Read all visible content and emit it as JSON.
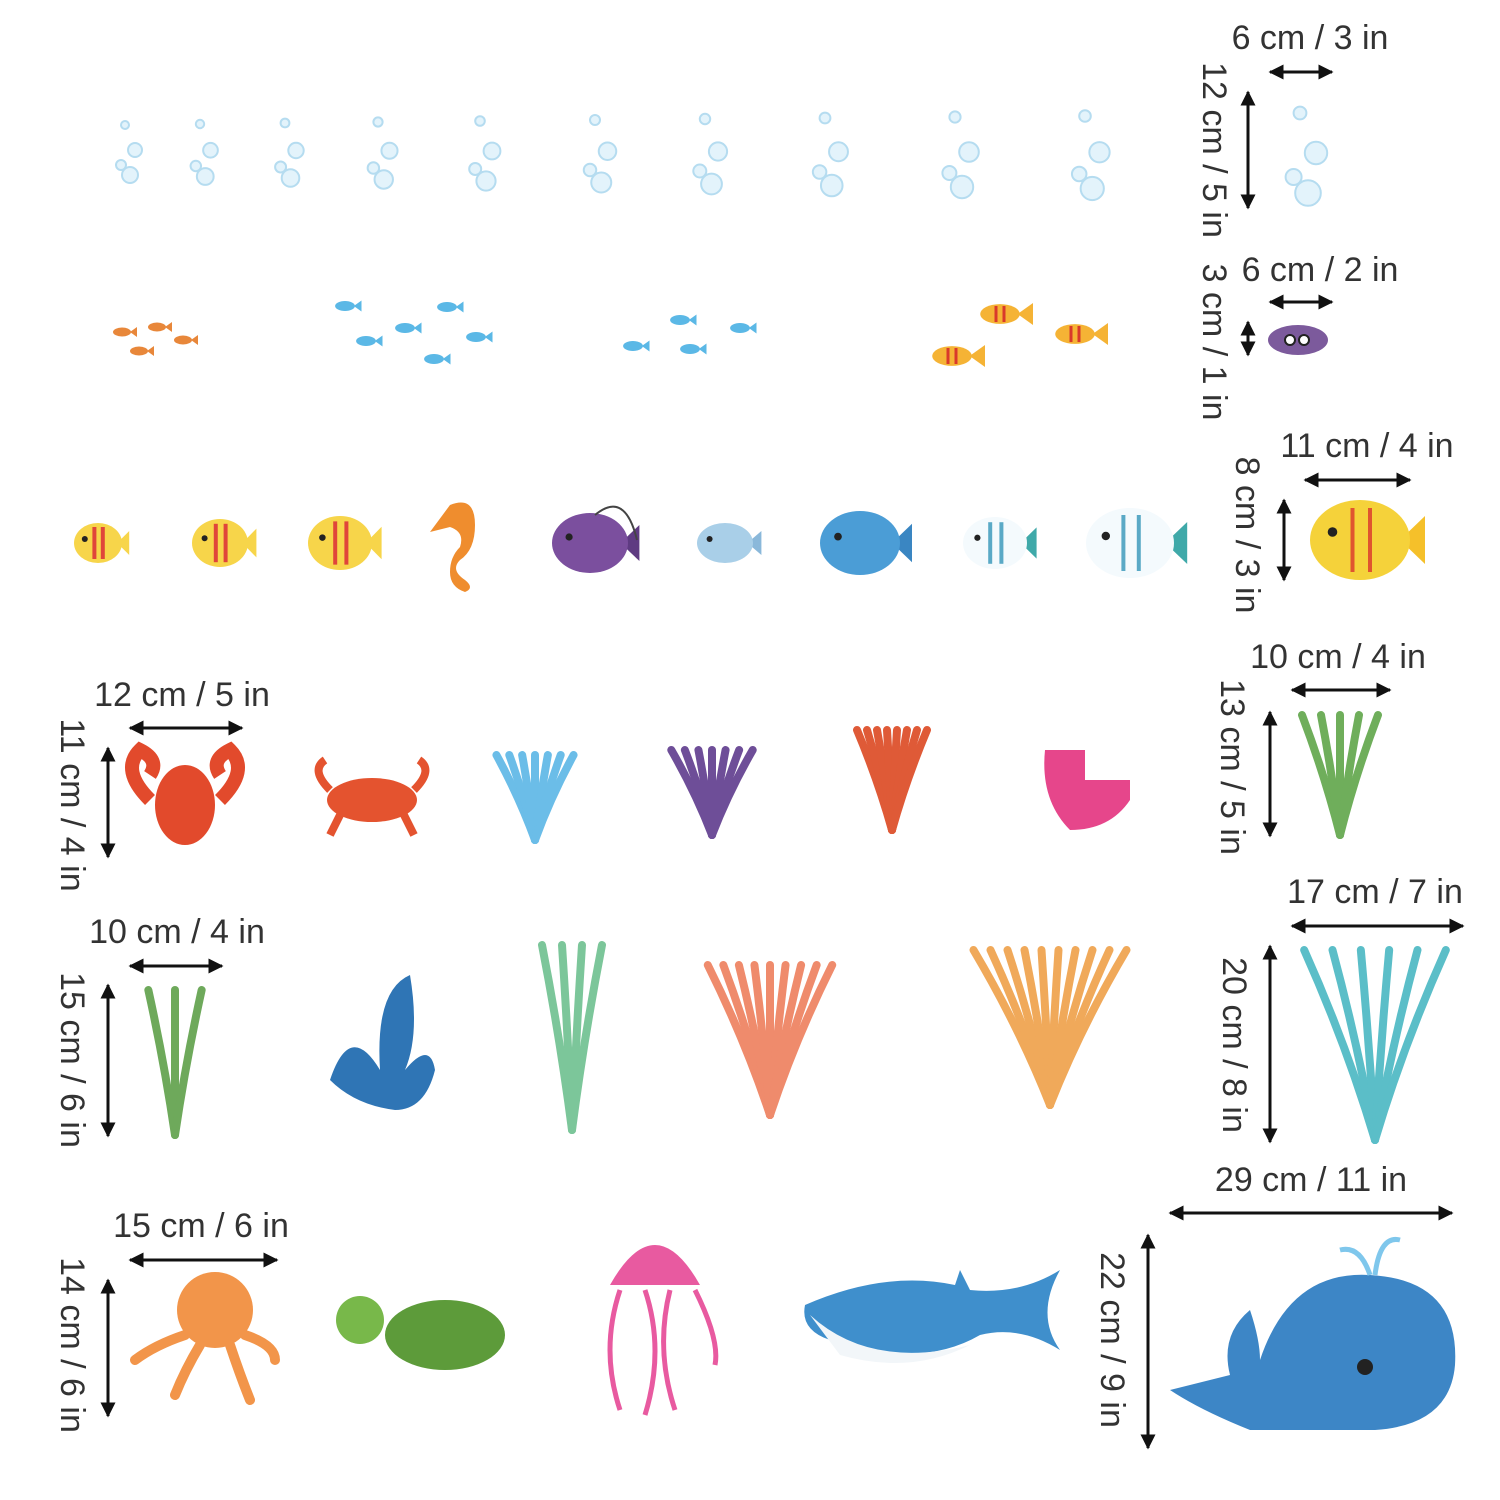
{
  "measurements": [
    {
      "width": "6 cm / 3 in",
      "height": "12 cm / 5 in"
    },
    {
      "width": "6 cm / 2 in",
      "height": "3 cm / 1 in"
    },
    {
      "width": "11 cm / 4 in",
      "height": "8 cm / 3 in"
    },
    {
      "width": "12 cm / 5 in",
      "height": "11 cm / 4 in"
    },
    {
      "width": "10 cm / 4 in",
      "height": "13 cm / 5 in"
    },
    {
      "width": "10 cm / 4 in",
      "height": "15 cm / 6 in"
    },
    {
      "width": "17 cm / 7 in",
      "height": "20 cm / 8 in"
    },
    {
      "width": "15 cm / 6 in",
      "height": "14 cm / 6 in"
    },
    {
      "width": "29 cm / 11 in",
      "height": "22 cm / 9 in"
    }
  ]
}
